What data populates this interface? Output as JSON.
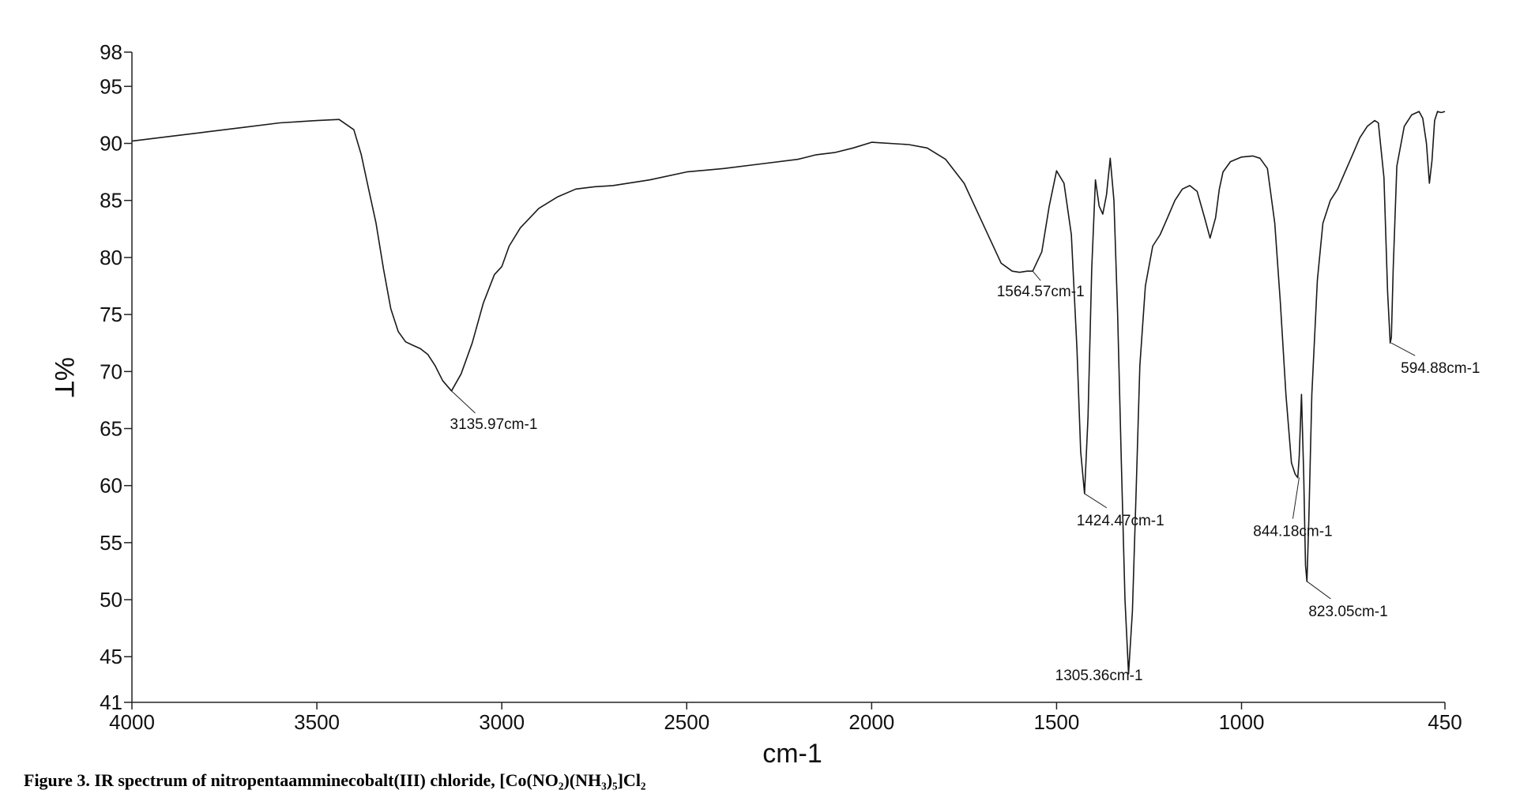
{
  "caption": "Figure 3. IR spectrum of nitropentaamminecobalt(III) chloride, [Co(NO₂)(NH₃)₅]Cl₂",
  "chart_data": {
    "type": "line",
    "title": "",
    "xlabel": "cm-1",
    "ylabel": "%T",
    "xlim": [
      4000,
      450
    ],
    "ylim": [
      41,
      98
    ],
    "x_ticks": [
      4000,
      3500,
      3000,
      2500,
      2000,
      1500,
      1000,
      450
    ],
    "y_ticks": [
      41,
      45,
      50,
      55,
      60,
      65,
      70,
      75,
      80,
      85,
      90,
      95,
      98
    ],
    "grid": false,
    "series": [
      {
        "x": [
          4000,
          3900,
          3800,
          3700,
          3600,
          3500,
          3440,
          3400,
          3380,
          3360,
          3340,
          3320,
          3300,
          3280,
          3260,
          3240,
          3220,
          3200,
          3180,
          3160,
          3135.97,
          3110,
          3080,
          3050,
          3020,
          3000,
          2980,
          2950,
          2900,
          2850,
          2800,
          2750,
          2700,
          2600,
          2500,
          2400,
          2300,
          2200,
          2150,
          2100,
          2050,
          2000,
          1900,
          1850,
          1800,
          1750,
          1700,
          1650,
          1620,
          1600,
          1580,
          1564.57,
          1540,
          1520,
          1500,
          1480,
          1460,
          1445,
          1435,
          1424.47,
          1415,
          1405,
          1395,
          1385,
          1375,
          1365,
          1355,
          1345,
          1335,
          1325,
          1315,
          1305.36,
          1295,
          1285,
          1275,
          1260,
          1240,
          1220,
          1200,
          1180,
          1160,
          1140,
          1120,
          1100,
          1085,
          1070,
          1060,
          1050,
          1030,
          1000,
          970,
          950,
          930,
          910,
          895,
          880,
          865,
          855,
          848,
          844.18,
          838,
          832,
          827,
          823.05,
          818,
          810,
          795,
          780,
          760,
          740,
          720,
          700,
          680,
          660,
          640,
          630,
          615,
          605,
          598,
          594.88,
          590,
          580,
          560,
          540,
          520,
          510,
          500,
          492,
          485,
          478,
          470,
          460,
          450
        ],
        "y": [
          90.2,
          90.6,
          91.0,
          91.4,
          91.8,
          92.0,
          92.1,
          91.2,
          89.0,
          86.0,
          83.0,
          79.0,
          75.5,
          73.5,
          72.6,
          72.3,
          72.0,
          71.5,
          70.5,
          69.2,
          68.3,
          69.8,
          72.5,
          76.0,
          78.5,
          79.2,
          81.0,
          82.6,
          84.3,
          85.3,
          86.0,
          86.2,
          86.3,
          86.8,
          87.5,
          87.8,
          88.2,
          88.6,
          89.0,
          89.2,
          89.6,
          90.1,
          89.9,
          89.6,
          88.6,
          86.5,
          83.0,
          79.5,
          78.8,
          78.7,
          78.8,
          78.8,
          80.5,
          84.5,
          87.6,
          86.5,
          82.0,
          72.0,
          63.0,
          59.3,
          66.0,
          79.0,
          86.8,
          84.5,
          83.8,
          85.5,
          88.7,
          85.0,
          75.0,
          62.0,
          50.0,
          43.5,
          49.0,
          59.5,
          70.5,
          77.5,
          81.0,
          82.0,
          83.5,
          85.0,
          86.0,
          86.3,
          85.8,
          83.5,
          81.7,
          83.5,
          86.0,
          87.5,
          88.4,
          88.8,
          88.9,
          88.7,
          87.8,
          83.0,
          76.0,
          68.0,
          62.0,
          61.0,
          60.7,
          62.5,
          68.0,
          61.0,
          53.0,
          51.6,
          57.0,
          68.0,
          78.0,
          83.0,
          85.0,
          86.0,
          87.5,
          89.0,
          90.5,
          91.5,
          92.0,
          91.8,
          87.0,
          77.0,
          72.5,
          73.0,
          79.0,
          88.0,
          91.5,
          92.5,
          92.8,
          92.2,
          90.0,
          86.5,
          88.5,
          92.0,
          92.8,
          92.7,
          92.8
        ]
      }
    ],
    "annotations": [
      {
        "text": "3135.97cm-1",
        "x": 3135.97,
        "y": 68.3
      },
      {
        "text": "1564.57cm-1",
        "x": 1564.57,
        "y": 78.8
      },
      {
        "text": "1424.47cm-1",
        "x": 1424.47,
        "y": 59.3
      },
      {
        "text": "1305.36cm-1",
        "x": 1305.36,
        "y": 43.5
      },
      {
        "text": "844.18cm-1",
        "x": 844.18,
        "y": 60.7
      },
      {
        "text": "823.05cm-1",
        "x": 823.05,
        "y": 51.6
      },
      {
        "text": "594.88cm-1",
        "x": 594.88,
        "y": 72.5
      }
    ]
  }
}
